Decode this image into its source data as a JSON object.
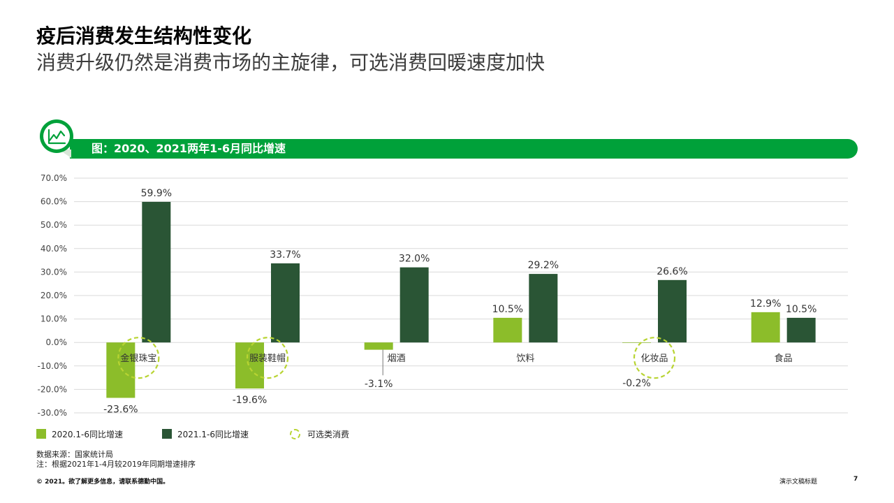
{
  "header": {
    "title": "疫后消费发生结构性变化",
    "subtitle": "消费升级仍然是消费市场的主旋律，可选消费回暖速度加快"
  },
  "banner": {
    "label": "图：2020、2021两年1-6月同比增速",
    "icon": "line-chart-icon"
  },
  "colors": {
    "accent": "#00a13a",
    "series_2020": "#8cbd2a",
    "series_2021": "#2a5535",
    "ring": "#b8d432"
  },
  "chart_data": {
    "type": "bar",
    "title": "图：2020、2021两年1-6月同比增速",
    "categories": [
      "金银珠宝",
      "服装鞋帽",
      "烟酒",
      "饮料",
      "化妆品",
      "食品"
    ],
    "series": [
      {
        "name": "2020.1-6同比增速",
        "values": [
          -23.6,
          -19.6,
          -3.1,
          10.5,
          -0.2,
          12.9
        ]
      },
      {
        "name": "2021.1-6同比增速",
        "values": [
          59.9,
          33.7,
          32.0,
          29.2,
          26.6,
          10.5
        ]
      }
    ],
    "value_labels_2020": [
      "-23.6%",
      "-19.6%",
      "-3.1%",
      "10.5%",
      "-0.2%",
      "12.9%"
    ],
    "value_labels_2021": [
      "59.9%",
      "33.7%",
      "32.0%",
      "29.2%",
      "26.6%",
      "10.5%"
    ],
    "y_ticks": [
      "70.0%",
      "60.0%",
      "50.0%",
      "40.0%",
      "30.0%",
      "20.0%",
      "10.0%",
      "0.0%",
      "-10.0%",
      "-20.0%",
      "-30.0%"
    ],
    "ylim": [
      -30,
      70
    ],
    "highlighted": [
      "金银珠宝",
      "服装鞋帽",
      "化妆品"
    ],
    "xlabel": "",
    "ylabel": "",
    "grid": true
  },
  "legend": {
    "series_2020": "2020.1-6同比增速",
    "series_2021": "2021.1-6同比增速",
    "optional": "可选类消费"
  },
  "footnotes": {
    "source": "数据来源：国家统计局",
    "note": "注：根据2021年1-4月较2019年同期增速排序"
  },
  "footer": {
    "copyright": "© 2021。欲了解更多信息，请联系德勤中国。",
    "doc_title": "演示文稿标题",
    "page": "7"
  }
}
